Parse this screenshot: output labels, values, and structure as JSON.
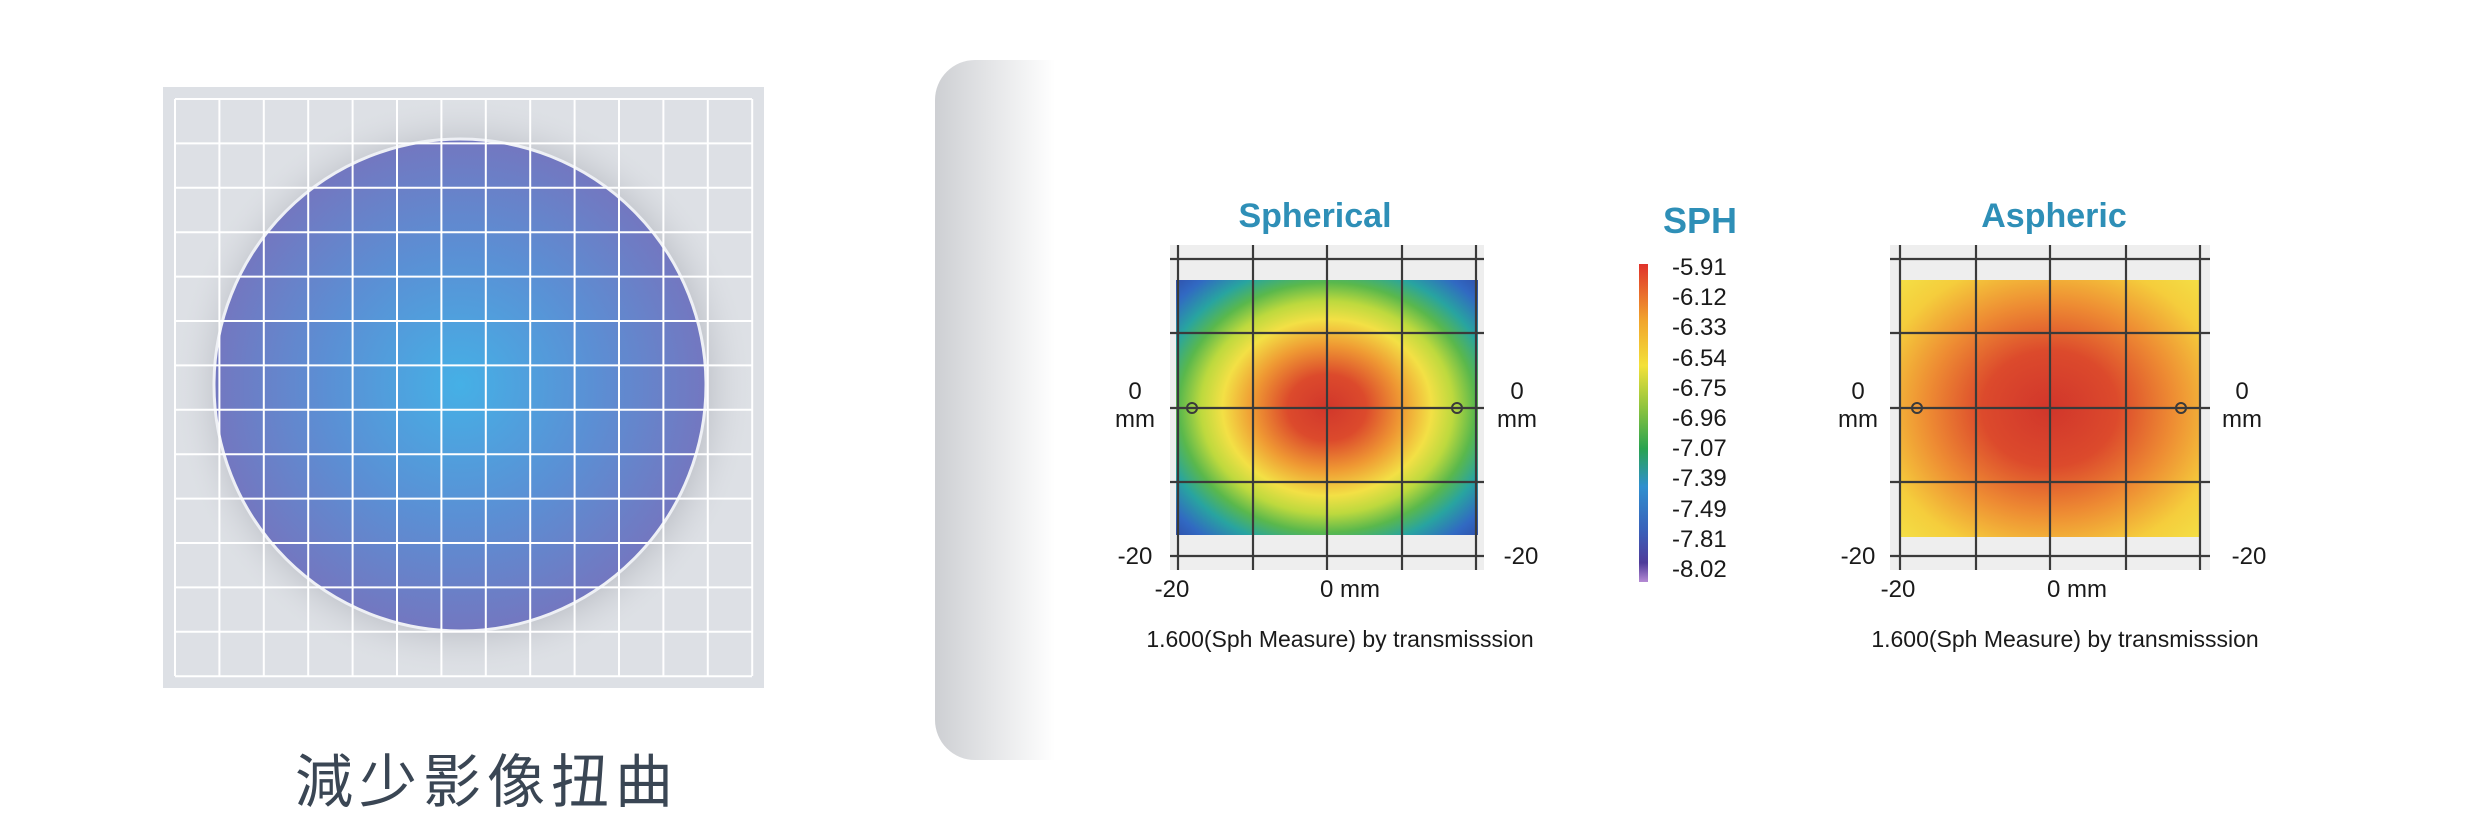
{
  "left": {
    "caption": "減少影像扭曲",
    "colors": {
      "disc": "#7377c0",
      "disc_center": "#45b0e6",
      "panel": "#dcdee2",
      "grid": "#ffffff"
    }
  },
  "maps": [
    {
      "title": "Spherical",
      "left_label": "0\nmm",
      "right_label": "0\nmm",
      "bottom_left_label": "-20",
      "bottom_right_label": "-20",
      "x_left_label": "-20",
      "x_center_label": "0 mm",
      "caption": "1.600(Sph Measure) by transmisssion"
    },
    {
      "title": "Aspheric",
      "left_label": "0\nmm",
      "right_label": "0\nmm",
      "bottom_left_label": "-20",
      "bottom_right_label": "-20",
      "x_left_label": "-20",
      "x_center_label": "0 mm",
      "caption": "1.600(Sph Measure) by transmisssion"
    }
  ],
  "legend": {
    "title": "SPH",
    "values": [
      "-5.91",
      "-6.12",
      "-6.33",
      "-6.54",
      "-6.75",
      "-6.96",
      "-7.07",
      "-7.39",
      "-7.49",
      "-7.81",
      "-8.02"
    ]
  }
}
